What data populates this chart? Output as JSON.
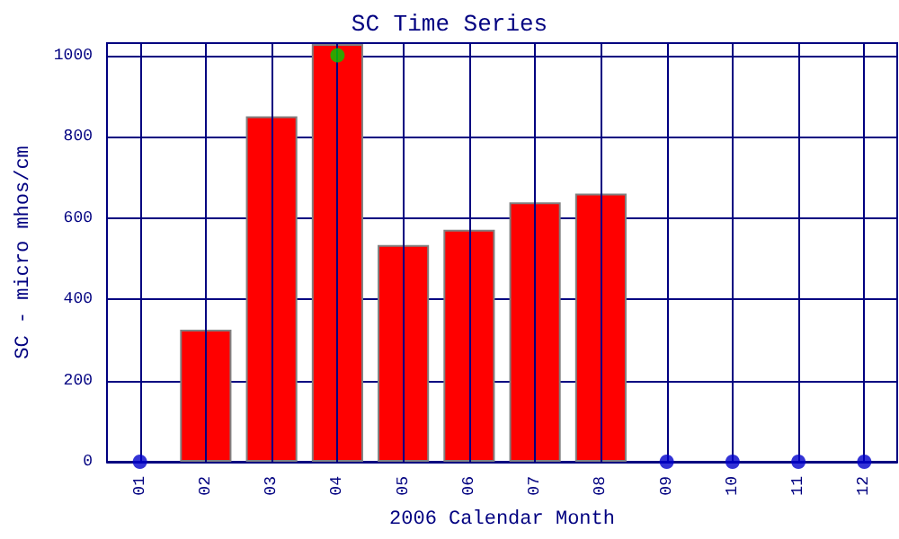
{
  "chart_data": {
    "type": "bar",
    "title": "SC Time Series",
    "xlabel": "2006 Calendar Month",
    "ylabel": "SC - micro mhos/cm",
    "categories": [
      "01",
      "02",
      "03",
      "04",
      "05",
      "06",
      "07",
      "08",
      "09",
      "10",
      "11",
      "12"
    ],
    "series": [
      {
        "color": "#ff0000",
        "values": [
          null,
          325,
          850,
          1028,
          533,
          571,
          638,
          660,
          null,
          null,
          null,
          null
        ]
      },
      {
        "type": "scatter",
        "color": "#0000cc",
        "x": [
          "01",
          "09",
          "10",
          "11",
          "12"
        ],
        "values": [
          0,
          0,
          0,
          0,
          0
        ]
      },
      {
        "type": "scatter",
        "color": "#00cc00",
        "x": [
          "04"
        ],
        "values": [
          1000
        ]
      }
    ],
    "ylim": [
      0,
      1030
    ],
    "yticks": [
      0,
      200,
      400,
      600,
      800,
      1000
    ],
    "grid": true,
    "marker": "circle"
  }
}
